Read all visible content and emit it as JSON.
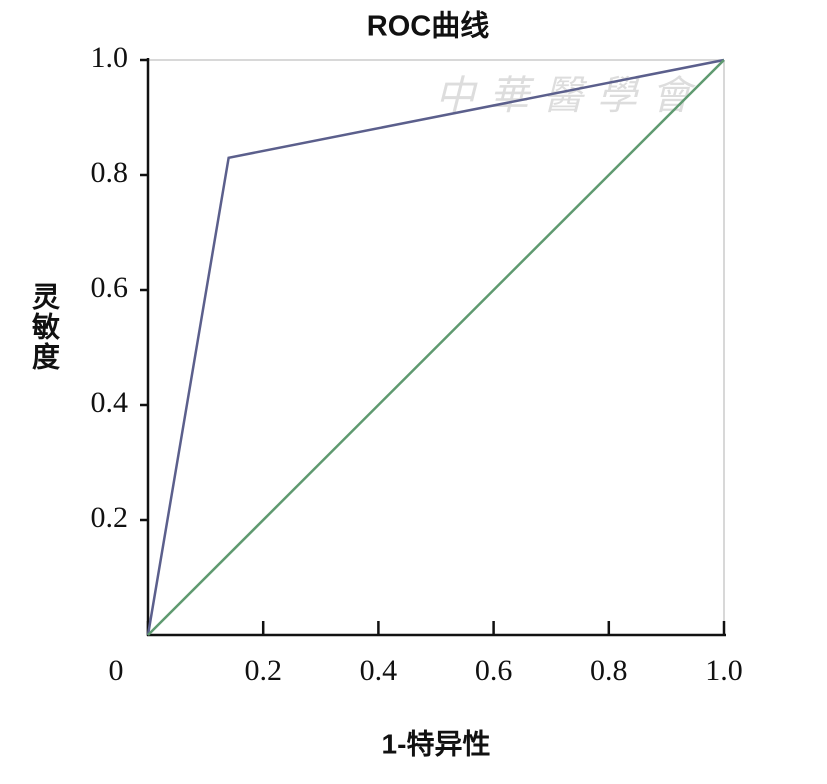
{
  "chart_data": {
    "type": "line",
    "title": "ROC曲线",
    "x_label": "1-特异性",
    "y_label": "灵敏度",
    "watermark": "中華醫學會",
    "series": [
      {
        "color": "#5b5f8c",
        "x": [
          0,
          0.14,
          1
        ],
        "values": [
          0,
          0.83,
          1
        ]
      },
      {
        "color": "#5f9a70",
        "x": [
          0,
          1
        ],
        "values": [
          0,
          1
        ]
      }
    ],
    "xlim": [
      0,
      1
    ],
    "ylim": [
      0,
      1
    ],
    "xticks": [
      0,
      0.2,
      0.4,
      0.6,
      0.8,
      {
        "value": 1,
        "label": "1.0"
      }
    ],
    "yticks": [
      0.2,
      0.4,
      0.6,
      0.8,
      {
        "value": 1,
        "label": "1.0"
      }
    ]
  }
}
